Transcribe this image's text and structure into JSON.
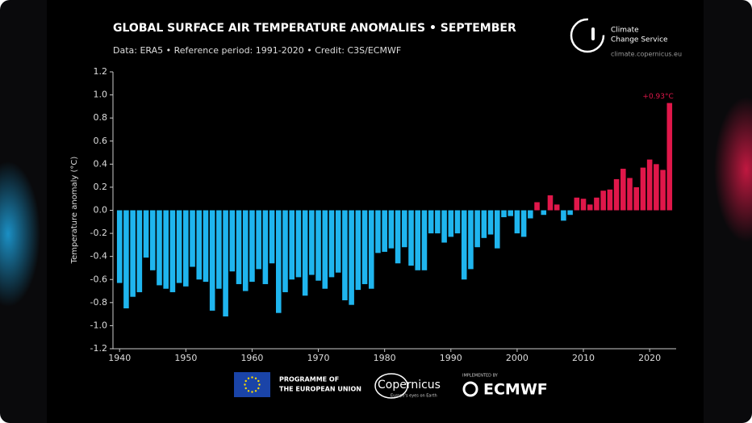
{
  "chart_data": {
    "type": "bar",
    "title": "GLOBAL SURFACE AIR TEMPERATURE ANOMALIES • SEPTEMBER",
    "subtitle": "Data: ERA5 • Reference period: 1991-2020 • Credit: C3S/ECMWF",
    "ylabel": "Temperature anomaly (°C)",
    "annotation": "+0.93°C",
    "positive_color": "#e0174a",
    "negative_color": "#1fb5ee",
    "x": [
      1940,
      1941,
      1942,
      1943,
      1944,
      1945,
      1946,
      1947,
      1948,
      1949,
      1950,
      1951,
      1952,
      1953,
      1954,
      1955,
      1956,
      1957,
      1958,
      1959,
      1960,
      1961,
      1962,
      1963,
      1964,
      1965,
      1966,
      1967,
      1968,
      1969,
      1970,
      1971,
      1972,
      1973,
      1974,
      1975,
      1976,
      1977,
      1978,
      1979,
      1980,
      1981,
      1982,
      1983,
      1984,
      1985,
      1986,
      1987,
      1988,
      1989,
      1990,
      1991,
      1992,
      1993,
      1994,
      1995,
      1996,
      1997,
      1998,
      1999,
      2000,
      2001,
      2002,
      2003,
      2004,
      2005,
      2006,
      2007,
      2008,
      2009,
      2010,
      2011,
      2012,
      2013,
      2014,
      2015,
      2016,
      2017,
      2018,
      2019,
      2020,
      2021,
      2022,
      2023
    ],
    "values": [
      -0.63,
      -0.85,
      -0.75,
      -0.71,
      -0.41,
      -0.52,
      -0.65,
      -0.68,
      -0.71,
      -0.63,
      -0.66,
      -0.49,
      -0.6,
      -0.62,
      -0.87,
      -0.68,
      -0.92,
      -0.53,
      -0.64,
      -0.7,
      -0.62,
      -0.51,
      -0.64,
      -0.46,
      -0.89,
      -0.71,
      -0.6,
      -0.58,
      -0.74,
      -0.56,
      -0.61,
      -0.68,
      -0.58,
      -0.54,
      -0.78,
      -0.82,
      -0.69,
      -0.64,
      -0.68,
      -0.37,
      -0.36,
      -0.33,
      -0.46,
      -0.32,
      -0.48,
      -0.52,
      -0.52,
      -0.2,
      -0.2,
      -0.28,
      -0.23,
      -0.2,
      -0.6,
      -0.51,
      -0.32,
      -0.24,
      -0.21,
      -0.33,
      -0.06,
      -0.05,
      -0.2,
      -0.23,
      -0.07,
      0.07,
      -0.04,
      0.13,
      0.05,
      -0.09,
      -0.04,
      0.11,
      0.1,
      0.05,
      0.11,
      0.17,
      0.18,
      0.27,
      0.36,
      0.28,
      0.2,
      0.37,
      0.44,
      0.4,
      0.35,
      0.93
    ],
    "xlim": [
      1939,
      2024
    ],
    "xticks": [
      1940,
      1950,
      1960,
      1970,
      1980,
      1990,
      2000,
      2010,
      2020
    ],
    "ylim": [
      -1.2,
      1.2
    ],
    "yticks": [
      -1.2,
      {
        "value": -1.0,
        "label": "-1.0"
      },
      -0.8,
      -0.6,
      -0.4,
      -0.2,
      {
        "value": 0,
        "label": "0.0"
      },
      0.2,
      0.4,
      0.6,
      0.8,
      {
        "value": 1.0,
        "label": "1.0"
      },
      1.2
    ]
  },
  "logos": {
    "service_line1": "Climate",
    "service_line2": "Change Service",
    "url": "climate.copernicus.eu",
    "eu_line1": "PROGRAMME OF",
    "eu_line2": "THE EUROPEAN UNION",
    "copernicus": "Copernicus",
    "copernicus_tag": "Europe's eyes on Earth",
    "implemented": "IMPLEMENTED BY",
    "ecmwf": "ECMWF"
  }
}
